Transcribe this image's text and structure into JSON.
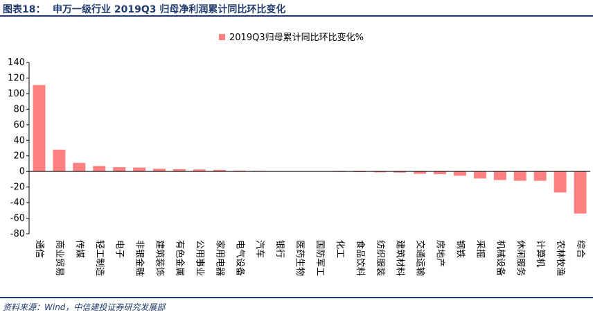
{
  "figure": {
    "label": "图表18：",
    "title": "申万一级行业 2019Q3 归母净利润累计同比环比变化",
    "source": "资料来源：Wind，中信建投证券研究发展部"
  },
  "chart_data": {
    "type": "bar",
    "legend": "top-center",
    "ylim": [
      -80,
      140
    ],
    "yticks": [
      -80,
      -60,
      -40,
      -20,
      0,
      20,
      40,
      60,
      80,
      100,
      120,
      140
    ],
    "bar_color": "#ff8080",
    "categories": [
      "通信",
      "商业贸易",
      "传媒",
      "轻工制造",
      "电子",
      "非银金融",
      "建筑装饰",
      "有色金属",
      "公用事业",
      "家用电器",
      "电气设备",
      "汽车",
      "银行",
      "医药生物",
      "国防军工",
      "化工",
      "食品饮料",
      "纺织服装",
      "建筑材料",
      "交通运输",
      "房地产",
      "钢铁",
      "采掘",
      "机械设备",
      "休闲服务",
      "计算机",
      "农林牧渔",
      "综合"
    ],
    "series": [
      {
        "name": "2019Q3归母累计同比环比变化%",
        "values": [
          111,
          28,
          11,
          7,
          5.5,
          5,
          3.5,
          3,
          2.5,
          2,
          1,
          0.8,
          0.2,
          0,
          0,
          -0.5,
          -0.8,
          -1.2,
          -1.5,
          -3,
          -3.5,
          -5.5,
          -9,
          -11,
          -12,
          -12,
          -27,
          -54
        ]
      }
    ]
  }
}
